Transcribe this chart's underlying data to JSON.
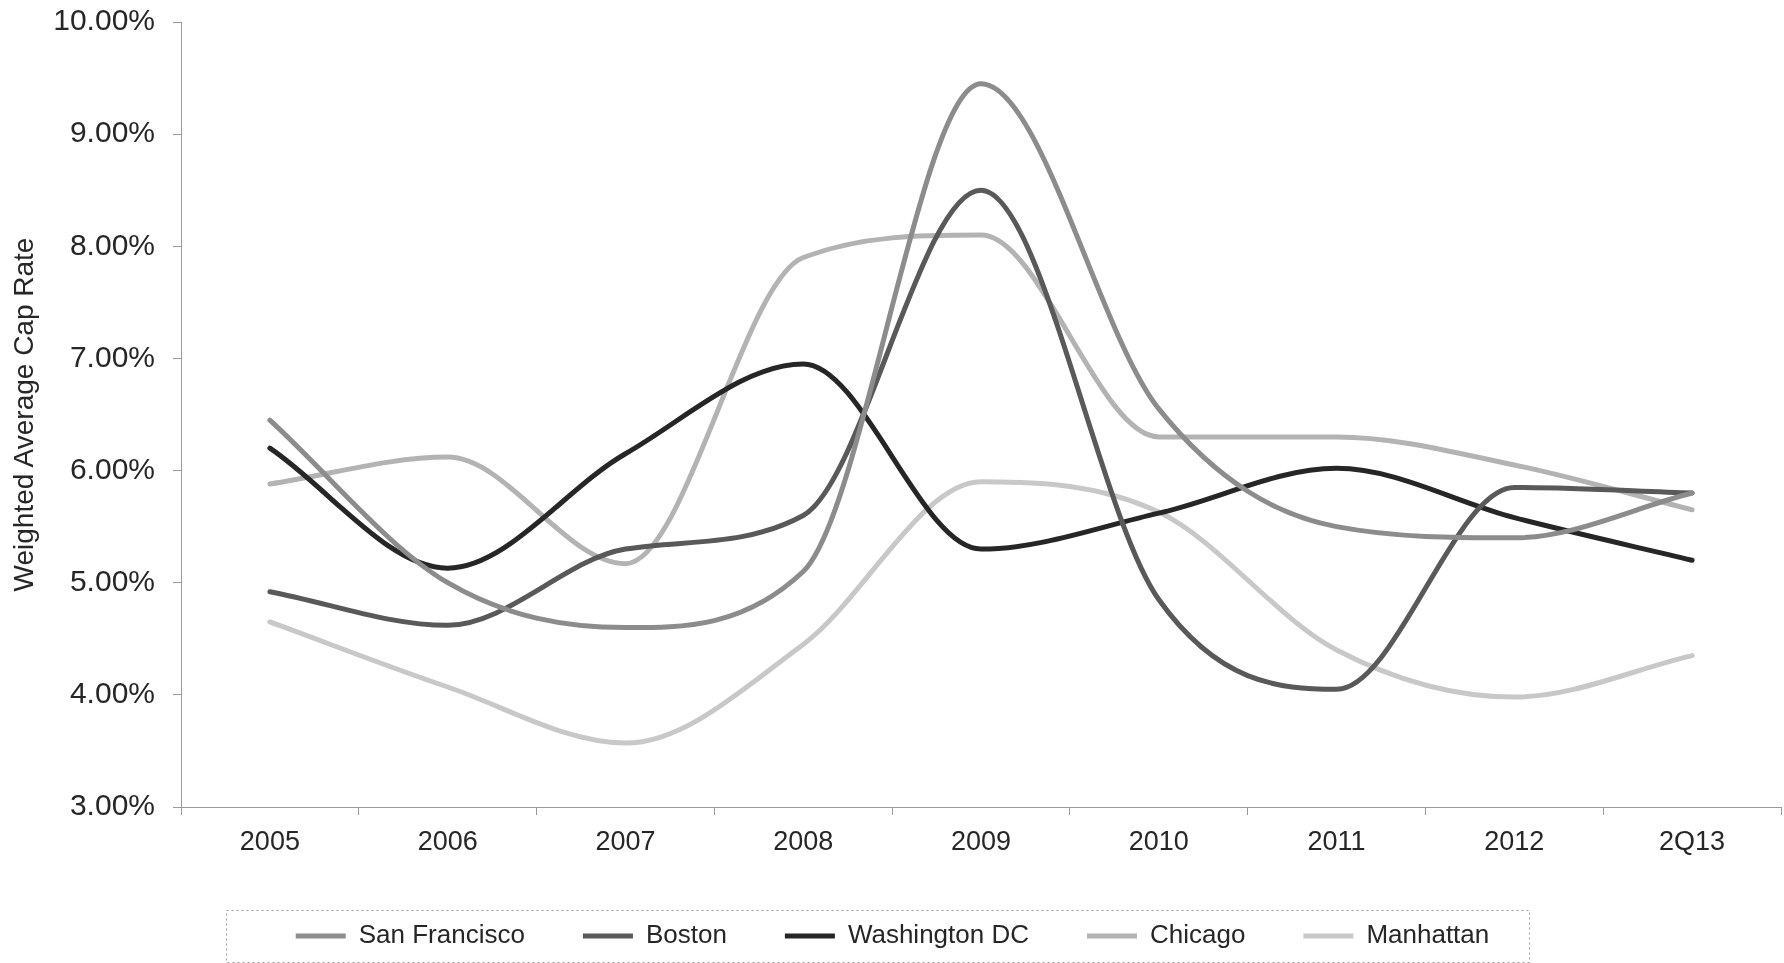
{
  "chart_data": {
    "type": "line",
    "ylabel": "Weighted Average Cap Rate",
    "categories": [
      "2005",
      "2006",
      "2007",
      "2008",
      "2009",
      "2010",
      "2011",
      "2012",
      "2Q13"
    ],
    "series": [
      {
        "name": "San Francisco",
        "color": "#8c8c8c",
        "values": [
          6.45,
          5.0,
          4.6,
          5.1,
          9.45,
          6.55,
          5.5,
          5.4,
          5.8
        ]
      },
      {
        "name": "Boston",
        "color": "#595959",
        "values": [
          4.92,
          4.62,
          5.3,
          5.6,
          8.5,
          4.85,
          4.05,
          5.85,
          5.8
        ]
      },
      {
        "name": "Washington DC",
        "color": "#262626",
        "values": [
          6.2,
          5.13,
          6.15,
          6.95,
          5.3,
          5.62,
          6.02,
          5.58,
          5.2
        ]
      },
      {
        "name": "Chicago",
        "color": "#b3b3b3",
        "values": [
          5.88,
          6.12,
          5.17,
          7.9,
          8.1,
          6.3,
          6.3,
          6.05,
          5.65
        ]
      },
      {
        "name": "Manhattan",
        "color": "#c8c8c8",
        "values": [
          4.65,
          4.07,
          3.57,
          4.45,
          5.9,
          5.63,
          4.4,
          3.98,
          4.35
        ]
      }
    ],
    "ylim": [
      3,
      10
    ],
    "yticks": [
      {
        "value": 3,
        "label": "3.00%"
      },
      {
        "value": 4,
        "label": "4.00%"
      },
      {
        "value": 5,
        "label": "5.00%"
      },
      {
        "value": 6,
        "label": "6.00%"
      },
      {
        "value": 7,
        "label": "7.00%"
      },
      {
        "value": 8,
        "label": "8.00%"
      },
      {
        "value": 9,
        "label": "9.00%"
      },
      {
        "value": 10,
        "label": "10.00%"
      }
    ],
    "legend": "bottom"
  }
}
